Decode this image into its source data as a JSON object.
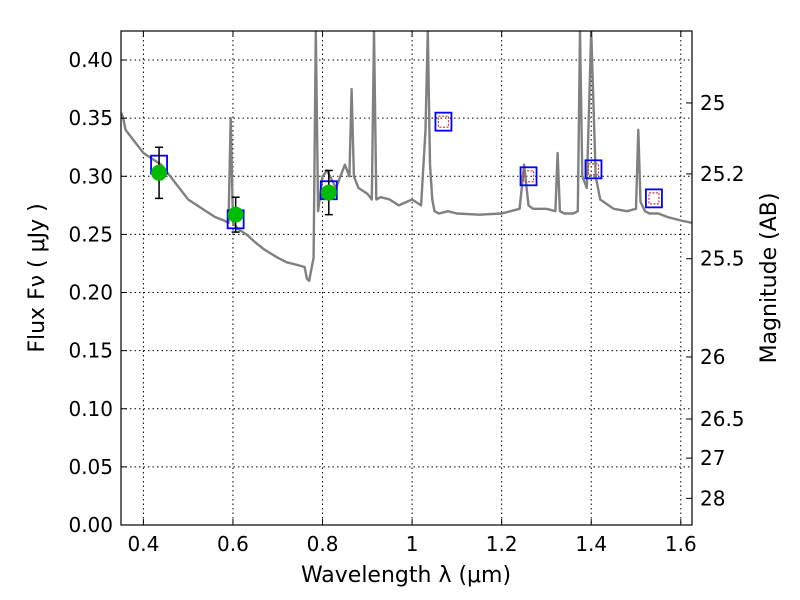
{
  "chart_data": {
    "type": "line",
    "title": "",
    "xlabel": "Wavelength  λ (μm)",
    "ylabel": "Flux  Fν  ( μJy )",
    "ylabel_right": "Magnitude (AB)",
    "xlim": [
      0.35,
      1.625
    ],
    "ylim": [
      0,
      0.425
    ],
    "grid": true,
    "x_ticks": [
      {
        "value": 0.4,
        "label": "0.4"
      },
      {
        "value": 0.6,
        "label": "0.6"
      },
      {
        "value": 0.8,
        "label": "0.8"
      },
      {
        "value": 1.0,
        "label": "1"
      },
      {
        "value": 1.2,
        "label": "1.2"
      },
      {
        "value": 1.4,
        "label": "1.4"
      },
      {
        "value": 1.6,
        "label": "1.6"
      }
    ],
    "y_ticks": [
      {
        "value": 0.0,
        "label": "0.00"
      },
      {
        "value": 0.05,
        "label": "0.05"
      },
      {
        "value": 0.1,
        "label": "0.10"
      },
      {
        "value": 0.15,
        "label": "0.15"
      },
      {
        "value": 0.2,
        "label": "0.20"
      },
      {
        "value": 0.25,
        "label": "0.25"
      },
      {
        "value": 0.3,
        "label": "0.30"
      },
      {
        "value": 0.35,
        "label": "0.35"
      },
      {
        "value": 0.4,
        "label": "0.40"
      }
    ],
    "right_ticks": [
      {
        "mag": 25,
        "label": "25"
      },
      {
        "mag": 25.2,
        "label": "25.2"
      },
      {
        "mag": 25.5,
        "label": "25.5"
      },
      {
        "mag": 26,
        "label": "26"
      },
      {
        "mag": 26.5,
        "label": "26.5"
      },
      {
        "mag": 27,
        "label": "27"
      },
      {
        "mag": 28,
        "label": "28"
      }
    ],
    "colors": {
      "model_line": "#808080",
      "observed_point": "#00bb00",
      "model_box": "#0000ff",
      "model_inner_box": "#cc3333",
      "errorbar": "#000000"
    },
    "series": [
      {
        "kind": "model_spectrum",
        "x": [
          0.35,
          0.355,
          0.36,
          0.37,
          0.38,
          0.39,
          0.4,
          0.42,
          0.44,
          0.46,
          0.48,
          0.5,
          0.52,
          0.54,
          0.56,
          0.58,
          0.59,
          0.595,
          0.6,
          0.605,
          0.61,
          0.63,
          0.65,
          0.67,
          0.7,
          0.72,
          0.74,
          0.76,
          0.765,
          0.77,
          0.78,
          0.785,
          0.79,
          0.8,
          0.81,
          0.83,
          0.84,
          0.85,
          0.86,
          0.865,
          0.87,
          0.88,
          0.9,
          0.91,
          0.915,
          0.92,
          0.93,
          0.95,
          0.97,
          1.0,
          1.02,
          1.03,
          1.035,
          1.04,
          1.045,
          1.05,
          1.06,
          1.08,
          1.1,
          1.15,
          1.2,
          1.24,
          1.25,
          1.26,
          1.27,
          1.3,
          1.32,
          1.325,
          1.33,
          1.34,
          1.36,
          1.37,
          1.375,
          1.38,
          1.39,
          1.4,
          1.41,
          1.42,
          1.45,
          1.48,
          1.5,
          1.505,
          1.51,
          1.52,
          1.53,
          1.54,
          1.55,
          1.57,
          1.6,
          1.625
        ],
        "y": [
          0.355,
          0.35,
          0.34,
          0.335,
          0.33,
          0.325,
          0.32,
          0.315,
          0.31,
          0.3,
          0.29,
          0.28,
          0.275,
          0.27,
          0.265,
          0.262,
          0.26,
          0.35,
          0.26,
          0.258,
          0.255,
          0.25,
          0.243,
          0.237,
          0.23,
          0.226,
          0.224,
          0.222,
          0.212,
          0.21,
          0.23,
          0.425,
          0.27,
          0.3,
          0.305,
          0.29,
          0.3,
          0.31,
          0.3,
          0.375,
          0.3,
          0.29,
          0.285,
          0.28,
          0.425,
          0.28,
          0.282,
          0.28,
          0.275,
          0.28,
          0.275,
          0.34,
          0.425,
          0.31,
          0.28,
          0.27,
          0.268,
          0.27,
          0.268,
          0.267,
          0.268,
          0.272,
          0.31,
          0.275,
          0.272,
          0.272,
          0.27,
          0.32,
          0.27,
          0.268,
          0.268,
          0.27,
          0.425,
          0.3,
          0.29,
          0.425,
          0.3,
          0.28,
          0.272,
          0.27,
          0.272,
          0.34,
          0.278,
          0.27,
          0.268,
          0.268,
          0.268,
          0.265,
          0.262,
          0.26
        ]
      },
      {
        "kind": "model_photometry",
        "points": [
          {
            "x": 0.435,
            "y": 0.31
          },
          {
            "x": 0.606,
            "y": 0.263
          },
          {
            "x": 0.814,
            "y": 0.288
          },
          {
            "x": 1.07,
            "y": 0.347
          },
          {
            "x": 1.26,
            "y": 0.3
          },
          {
            "x": 1.405,
            "y": 0.306
          },
          {
            "x": 1.54,
            "y": 0.281
          }
        ],
        "inner_box_points": [
          3,
          4,
          5,
          6
        ]
      },
      {
        "kind": "observed",
        "points": [
          {
            "x": 0.435,
            "y": 0.303,
            "err": 0.022
          },
          {
            "x": 0.606,
            "y": 0.267,
            "err": 0.015
          },
          {
            "x": 0.814,
            "y": 0.286,
            "err": 0.019
          }
        ]
      }
    ]
  }
}
